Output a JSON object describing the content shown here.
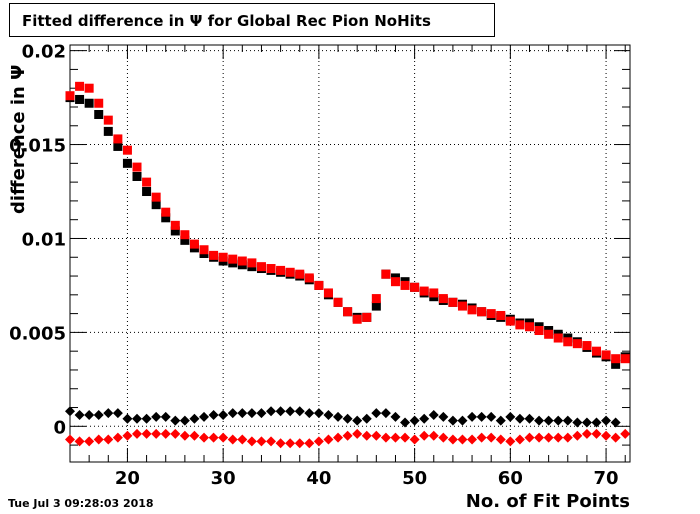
{
  "timestamp": "Tue Jul  3 09:28:03 2018",
  "chart_data": {
    "type": "scatter",
    "title": "Fitted difference in  Ψ  for Global Rec Pion NoHits",
    "xlabel": "No. of Fit Points",
    "ylabel": "difference in  Ψ",
    "xlim": [
      14,
      72.5
    ],
    "ylim": [
      -0.0019,
      0.0203
    ],
    "grid": true,
    "x_ticks": [
      20,
      30,
      40,
      50,
      60,
      70
    ],
    "x_tick_labels": [
      "20",
      "30",
      "40",
      "50",
      "60",
      "70"
    ],
    "y_ticks": [
      0,
      0.005,
      0.01,
      0.015,
      0.02
    ],
    "y_tick_labels": [
      "0",
      "0.005",
      "0.01",
      "0.015",
      "0.02"
    ],
    "series": [
      {
        "marker": "square",
        "color": "#000000",
        "x": [
          14,
          15,
          16,
          17,
          18,
          19,
          20,
          21,
          22,
          23,
          24,
          25,
          26,
          27,
          28,
          29,
          30,
          31,
          32,
          33,
          34,
          35,
          36,
          37,
          38,
          39,
          40,
          41,
          42,
          43,
          44,
          45,
          46,
          47,
          48,
          49,
          50,
          51,
          52,
          53,
          54,
          55,
          56,
          57,
          58,
          59,
          60,
          61,
          62,
          63,
          64,
          65,
          66,
          67,
          68,
          69,
          70,
          71,
          72
        ],
        "y": [
          0.0175,
          0.0174,
          0.0172,
          0.0166,
          0.0157,
          0.0149,
          0.014,
          0.0133,
          0.0125,
          0.0118,
          0.0111,
          0.0104,
          0.0099,
          0.0095,
          0.0092,
          0.009,
          0.0088,
          0.0087,
          0.0086,
          0.0085,
          0.0084,
          0.0083,
          0.0082,
          0.0081,
          0.008,
          0.0078,
          0.0075,
          0.007,
          0.0066,
          0.0061,
          0.0058,
          0.0058,
          0.0064,
          0.0081,
          0.0079,
          0.0077,
          0.0074,
          0.0071,
          0.0069,
          0.0067,
          0.0066,
          0.0065,
          0.0063,
          0.0061,
          0.0059,
          0.0058,
          0.0057,
          0.0055,
          0.0055,
          0.0053,
          0.0051,
          0.0049,
          0.0047,
          0.0045,
          0.0042,
          0.0039,
          0.0037,
          0.0033,
          0.0037
        ]
      },
      {
        "marker": "square",
        "color": "#ff0000",
        "x": [
          14,
          15,
          16,
          17,
          18,
          19,
          20,
          21,
          22,
          23,
          24,
          25,
          26,
          27,
          28,
          29,
          30,
          31,
          32,
          33,
          34,
          35,
          36,
          37,
          38,
          39,
          40,
          41,
          42,
          43,
          44,
          45,
          46,
          47,
          48,
          49,
          50,
          51,
          52,
          53,
          54,
          55,
          56,
          57,
          58,
          59,
          60,
          61,
          62,
          63,
          64,
          65,
          66,
          67,
          68,
          69,
          70,
          71,
          72
        ],
        "y": [
          0.0176,
          0.0181,
          0.018,
          0.0172,
          0.0163,
          0.0153,
          0.0147,
          0.0138,
          0.013,
          0.0122,
          0.0114,
          0.0107,
          0.0102,
          0.0097,
          0.0094,
          0.0091,
          0.009,
          0.0089,
          0.0088,
          0.0087,
          0.0085,
          0.0084,
          0.0083,
          0.0082,
          0.0081,
          0.0079,
          0.0075,
          0.0071,
          0.0066,
          0.0061,
          0.0057,
          0.0058,
          0.0068,
          0.0081,
          0.0077,
          0.0075,
          0.0074,
          0.0072,
          0.0071,
          0.0068,
          0.0066,
          0.0064,
          0.0062,
          0.0061,
          0.006,
          0.0059,
          0.0056,
          0.0054,
          0.0053,
          0.0051,
          0.0049,
          0.0047,
          0.0045,
          0.0044,
          0.0043,
          0.004,
          0.0038,
          0.0036,
          0.0036
        ]
      },
      {
        "marker": "diamond",
        "color": "#000000",
        "x": [
          14,
          15,
          16,
          17,
          18,
          19,
          20,
          21,
          22,
          23,
          24,
          25,
          26,
          27,
          28,
          29,
          30,
          31,
          32,
          33,
          34,
          35,
          36,
          37,
          38,
          39,
          40,
          41,
          42,
          43,
          44,
          45,
          46,
          47,
          48,
          49,
          50,
          51,
          52,
          53,
          54,
          55,
          56,
          57,
          58,
          59,
          60,
          61,
          62,
          63,
          64,
          65,
          66,
          67,
          68,
          69,
          70,
          71
        ],
        "y": [
          0.0008,
          0.0006,
          0.0006,
          0.0006,
          0.0007,
          0.0007,
          0.0004,
          0.0004,
          0.0004,
          0.0005,
          0.0005,
          0.0003,
          0.0003,
          0.0004,
          0.0005,
          0.0006,
          0.0006,
          0.0007,
          0.0007,
          0.0007,
          0.0007,
          0.0008,
          0.0008,
          0.0008,
          0.0008,
          0.0007,
          0.0007,
          0.0006,
          0.0005,
          0.0004,
          0.0003,
          0.0004,
          0.0007,
          0.0007,
          0.0005,
          0.0002,
          0.0003,
          0.0004,
          0.0006,
          0.0005,
          0.0003,
          0.0003,
          0.0005,
          0.0005,
          0.0005,
          0.0003,
          0.0005,
          0.0004,
          0.0004,
          0.0003,
          0.0003,
          0.0003,
          0.0003,
          0.0002,
          0.0002,
          0.0002,
          0.0003,
          0.0002
        ]
      },
      {
        "marker": "diamond",
        "color": "#ff0000",
        "x": [
          14,
          15,
          16,
          17,
          18,
          19,
          20,
          21,
          22,
          23,
          24,
          25,
          26,
          27,
          28,
          29,
          30,
          31,
          32,
          33,
          34,
          35,
          36,
          37,
          38,
          39,
          40,
          41,
          42,
          43,
          44,
          45,
          46,
          47,
          48,
          49,
          50,
          51,
          52,
          53,
          54,
          55,
          56,
          57,
          58,
          59,
          60,
          61,
          62,
          63,
          64,
          65,
          66,
          67,
          68,
          69,
          70,
          71,
          72
        ],
        "y": [
          -0.0007,
          -0.0008,
          -0.0008,
          -0.0007,
          -0.0007,
          -0.0006,
          -0.0005,
          -0.0004,
          -0.0004,
          -0.0004,
          -0.0004,
          -0.0004,
          -0.0005,
          -0.0005,
          -0.0006,
          -0.0006,
          -0.0006,
          -0.0007,
          -0.0007,
          -0.0008,
          -0.0008,
          -0.0008,
          -0.0009,
          -0.0009,
          -0.0009,
          -0.0009,
          -0.0008,
          -0.0007,
          -0.0006,
          -0.0005,
          -0.0004,
          -0.0005,
          -0.0005,
          -0.0006,
          -0.0006,
          -0.0006,
          -0.0007,
          -0.0005,
          -0.0005,
          -0.0006,
          -0.0007,
          -0.0007,
          -0.0007,
          -0.0006,
          -0.0006,
          -0.0007,
          -0.0008,
          -0.0007,
          -0.0006,
          -0.0006,
          -0.0006,
          -0.0006,
          -0.0006,
          -0.0005,
          -0.0004,
          -0.0004,
          -0.0005,
          -0.0006,
          -0.0004
        ]
      }
    ]
  }
}
